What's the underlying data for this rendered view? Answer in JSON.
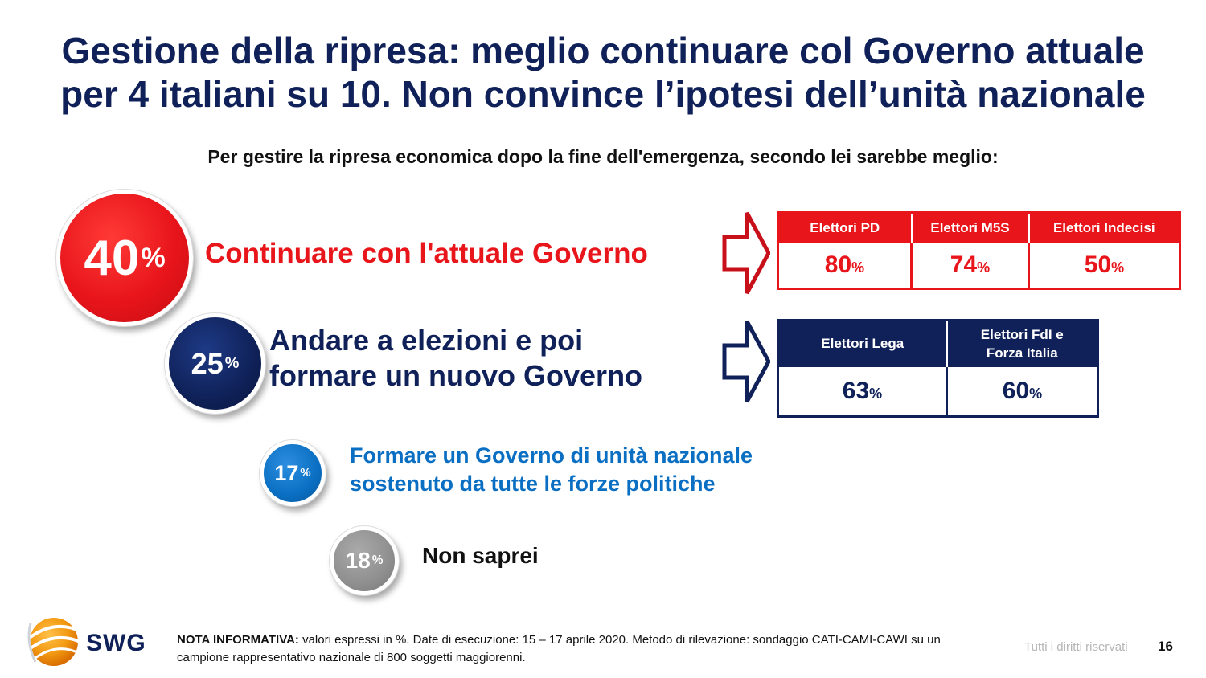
{
  "title": {
    "line1": "Gestione della ripresa: meglio continuare col Governo attuale",
    "line2": "per 4 italiani su 10. Non convince l’ipotesi dell’unità nazionale"
  },
  "question": "Per gestire la ripresa economica dopo la fine dell'emergenza, secondo lei sarebbe meglio:",
  "colors": {
    "red": "#e8151b",
    "navy": "#0f2158",
    "blue": "#0a6fc2",
    "grey": "#8f8f8f",
    "darkred": "#c8101a"
  },
  "chart_data": {
    "type": "bubble",
    "unit": "%",
    "options": [
      {
        "label_line1": "Continuare con l'attuale Governo",
        "label_line2": "",
        "value": 40
      },
      {
        "label_line1": "Andare a elezioni e poi",
        "label_line2": "formare un nuovo Governo",
        "value": 25
      },
      {
        "label_line1": "Formare un Governo di unità nazionale",
        "label_line2": "sostenuto da tutte le forze politiche",
        "value": 17
      },
      {
        "label_line1": "Non saprei",
        "label_line2": "",
        "value": 18
      }
    ],
    "breakdown_tables": [
      {
        "option": "Continuare con l'attuale Governo",
        "columns": [
          {
            "header": "Elettori PD",
            "value": 80
          },
          {
            "header": "Elettori M5S",
            "value": 74
          },
          {
            "header": "Elettori Indecisi",
            "value": 50
          }
        ]
      },
      {
        "option": "Andare a elezioni e poi formare un nuovo Governo",
        "columns": [
          {
            "header": "Elettori Lega",
            "value": 63
          },
          {
            "header_line1": "Elettori FdI e",
            "header_line2": "Forza Italia",
            "value": 60
          }
        ]
      }
    ]
  },
  "footer": {
    "note_label": "NOTA INFORMATIVA:",
    "note_text": " valori espressi in %. Date di esecuzione: 15 – 17 aprile 2020. Metodo di rilevazione: sondaggio CATI-CAMI-CAWI su un campione rappresentativo nazionale di 800 soggetti maggiorenni.",
    "rights": "Tutti i diritti riservati",
    "page_number": "16",
    "logo_text": "SWG"
  },
  "pct_sign": "%"
}
